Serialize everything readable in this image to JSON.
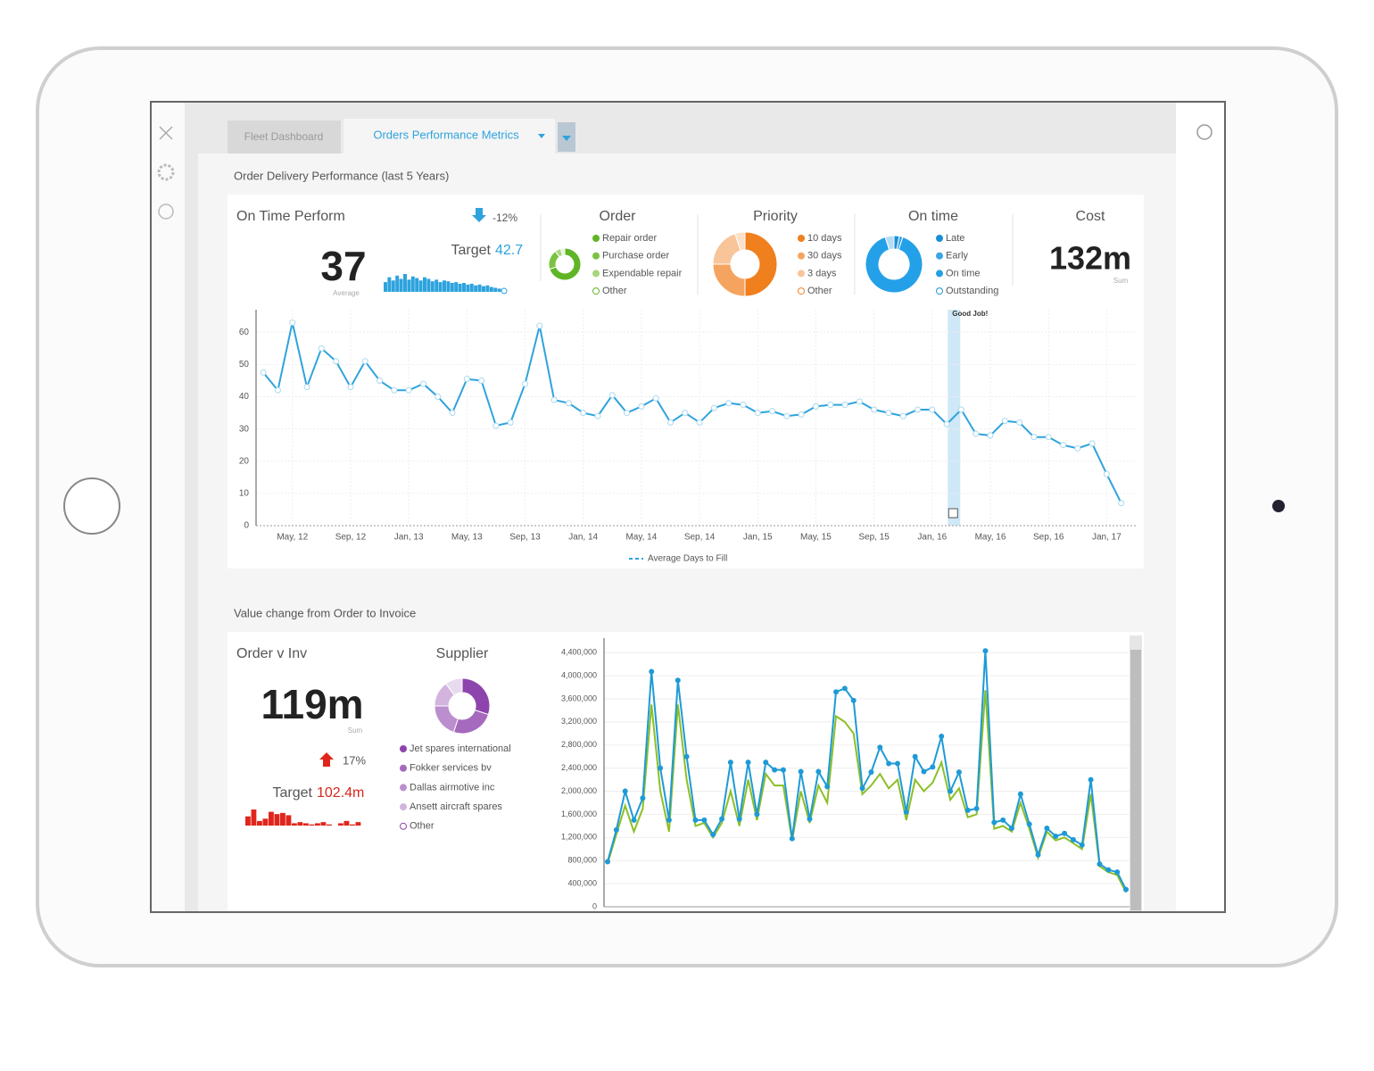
{
  "tabs": [
    "Fleet Dashboard",
    "Orders Performance Metrics"
  ],
  "delivery": {
    "title": "Order Delivery Performance (last 5 Years)",
    "kpi": {
      "title": "On Time Perform",
      "change": "-12%",
      "target_label": "Target",
      "target": "42.7",
      "value": "37",
      "caption": "Average",
      "sparkline": [
        12,
        18,
        14,
        20,
        16,
        22,
        15,
        19,
        17,
        14,
        18,
        16,
        13,
        15,
        12,
        14,
        13,
        11,
        12,
        10,
        11,
        9,
        10,
        8,
        9,
        7,
        8,
        6,
        5,
        4
      ]
    },
    "order": {
      "title": "Order",
      "values": [
        70,
        20,
        6,
        4
      ],
      "colors": [
        "#5fb526",
        "#7cc242",
        "#a8d67e",
        "#e4f2d6"
      ],
      "legend": [
        "Repair order",
        "Purchase order",
        "Expendable repair",
        "Other"
      ]
    },
    "priority": {
      "title": "Priority",
      "values": [
        50,
        25,
        20,
        5
      ],
      "colors": [
        "#f07f1e",
        "#f5a460",
        "#f8c49a",
        "#fde0c8"
      ],
      "legend": [
        "10 days",
        "30 days",
        "3 days",
        "Other"
      ]
    },
    "ontime": {
      "title": "On time",
      "values": [
        3,
        2,
        90,
        5
      ],
      "colors": [
        "#1a8fd8",
        "#3aa5e6",
        "#23a0e8",
        "#b5dcf5"
      ],
      "legend": [
        "Late",
        "Early",
        "On time",
        "Outstanding"
      ]
    },
    "cost": {
      "title": "Cost",
      "value": "132m",
      "caption": "Sum"
    },
    "chart": {
      "type": "line",
      "color": "#2ea3dd",
      "grid": true,
      "x": [
        0,
        1,
        2,
        3,
        4,
        5,
        6,
        7,
        8,
        9,
        10,
        11,
        12,
        13,
        14,
        15,
        16,
        17,
        18,
        19,
        20,
        21,
        22,
        23,
        24,
        25,
        26,
        27,
        28,
        29,
        30,
        31,
        32,
        33,
        34,
        35,
        36,
        37,
        38,
        39,
        40,
        41,
        42,
        43,
        44,
        45,
        46,
        47,
        48,
        49,
        50,
        51,
        52,
        53,
        54,
        55,
        56,
        57,
        58,
        59
      ],
      "values": [
        47.5,
        42,
        63,
        43,
        55,
        51,
        43,
        51,
        45,
        42,
        42,
        44,
        40,
        35,
        45.5,
        45,
        31,
        32,
        44,
        62,
        39,
        38,
        35,
        34,
        40.5,
        35,
        37,
        39.5,
        32,
        35,
        32,
        36.5,
        38,
        37.5,
        35,
        35.5,
        34,
        34.5,
        37,
        37.5,
        37.5,
        38.5,
        36,
        35,
        34,
        36,
        36,
        31.5,
        36,
        28.5,
        28,
        32.5,
        32,
        27.5,
        27.5,
        25,
        24,
        25.5,
        16,
        7
      ],
      "xlim": [
        -0.5,
        60
      ],
      "ylim": [
        0,
        67
      ],
      "yticks": [
        0,
        10,
        20,
        30,
        40,
        50,
        60
      ],
      "xticks": [
        {
          "value": 2,
          "label": "May, 12"
        },
        {
          "value": 6,
          "label": "Sep, 12"
        },
        {
          "value": 10,
          "label": "Jan, 13"
        },
        {
          "value": 14,
          "label": "May, 13"
        },
        {
          "value": 18,
          "label": "Sep, 13"
        },
        {
          "value": 22,
          "label": "Jan, 14"
        },
        {
          "value": 26,
          "label": "May, 14"
        },
        {
          "value": 30,
          "label": "Sep, 14"
        },
        {
          "value": 34,
          "label": "Jan, 15"
        },
        {
          "value": 38,
          "label": "May, 15"
        },
        {
          "value": 42,
          "label": "Sep, 15"
        },
        {
          "value": 46,
          "label": "Jan, 16"
        },
        {
          "value": 50,
          "label": "May, 16"
        },
        {
          "value": 54,
          "label": "Sep, 16"
        },
        {
          "value": 58,
          "label": "Jan, 17"
        }
      ],
      "annotation": {
        "text": "Good Job!",
        "x": 47.5
      },
      "legend": "Average Days to Fill"
    }
  },
  "invoice": {
    "title": "Value change from Order to Invoice",
    "kpi": {
      "title": "Order v Inv",
      "value": "119m",
      "caption": "Sum",
      "change": "17%",
      "target_label": "Target",
      "target": "102.4m",
      "sparkline": [
        8,
        14,
        4,
        6,
        12,
        10,
        11,
        9,
        2,
        3,
        2,
        1,
        2,
        3,
        1,
        0,
        2,
        4,
        1,
        3
      ]
    },
    "supplier": {
      "title": "Supplier",
      "values": [
        30,
        25,
        20,
        15,
        10
      ],
      "colors": [
        "#8e44ad",
        "#a569bd",
        "#bb8fce",
        "#d2b4de",
        "#e8daef"
      ],
      "legend": [
        "Jet spares international",
        "Fokker services bv",
        "Dallas airmotive inc",
        "Ansett aircraft spares",
        "Other"
      ]
    },
    "chart": {
      "type": "line",
      "grid": true,
      "ylim": [
        0,
        4650000
      ],
      "yticks": [
        0,
        {
          "value": 400000,
          "label": "400,000"
        },
        {
          "value": 800000,
          "label": "800,000"
        },
        {
          "value": 1200000,
          "label": "1,200,000"
        },
        {
          "value": 1600000,
          "label": "1,600,000"
        },
        {
          "value": 2000000,
          "label": "2,000,000"
        },
        {
          "value": 2400000,
          "label": "2,400,000"
        },
        {
          "value": 2800000,
          "label": "2,800,000"
        },
        {
          "value": 3200000,
          "label": "3,200,000"
        },
        {
          "value": 3600000,
          "label": "3,600,000"
        },
        {
          "value": 4000000,
          "label": "4,000,000"
        },
        {
          "value": 4400000,
          "label": "4,400,000"
        }
      ],
      "series": [
        {
          "color": "#1e9ad6",
          "values": [
            780000,
            1330000,
            2000000,
            1500000,
            1880000,
            4070000,
            2400000,
            1500000,
            3920000,
            2600000,
            1500000,
            1500000,
            1250000,
            1520000,
            2500000,
            1520000,
            2500000,
            1600000,
            2500000,
            2370000,
            2370000,
            1180000,
            2340000,
            1520000,
            2340000,
            2080000,
            3720000,
            3780000,
            3570000,
            2050000,
            2330000,
            2760000,
            2480000,
            2480000,
            1640000,
            2600000,
            2340000,
            2420000,
            2950000,
            2000000,
            2330000,
            1670000,
            1700000,
            4430000,
            1460000,
            1500000,
            1360000,
            1950000,
            1430000,
            900000,
            1360000,
            1220000,
            1270000,
            1160000,
            1070000,
            2200000,
            740000,
            640000,
            600000,
            300000
          ]
        },
        {
          "color": "#8cbf26",
          "values": [
            750000,
            1250000,
            1750000,
            1300000,
            1700000,
            3500000,
            2000000,
            1300000,
            3500000,
            2200000,
            1400000,
            1450000,
            1200000,
            1450000,
            2000000,
            1400000,
            2200000,
            1500000,
            2300000,
            2100000,
            2100000,
            1150000,
            2000000,
            1450000,
            2100000,
            1800000,
            3300000,
            3200000,
            3000000,
            1950000,
            2100000,
            2300000,
            2050000,
            2200000,
            1500000,
            2200000,
            2000000,
            2150000,
            2500000,
            1850000,
            2050000,
            1550000,
            1600000,
            3750000,
            1350000,
            1400000,
            1300000,
            1800000,
            1350000,
            850000,
            1300000,
            1150000,
            1200000,
            1100000,
            1000000,
            1950000,
            700000,
            600000,
            550000,
            250000
          ]
        }
      ]
    }
  }
}
